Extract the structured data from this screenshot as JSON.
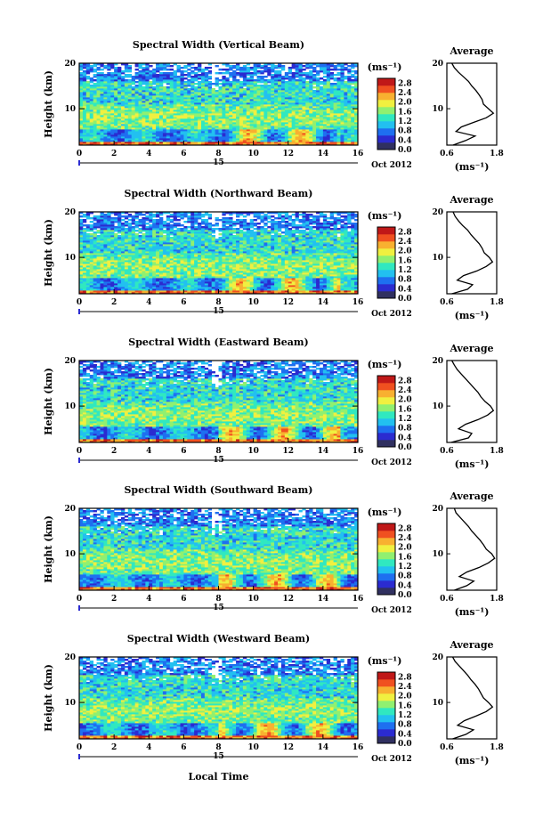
{
  "figure": {
    "xlabel": "Local Time",
    "ylabel": "Height (km)",
    "date_label": "Oct 2012",
    "day_label": "15",
    "colorbar_unit": "(ms⁻¹)",
    "colorbar_ticks": [
      "0.0",
      "0.4",
      "0.8",
      "1.2",
      "1.6",
      "2.0",
      "2.4",
      "2.8"
    ],
    "colormap": [
      "#303060",
      "#2b2bd0",
      "#1e6ff0",
      "#22c0f0",
      "#30e8c0",
      "#90f070",
      "#f0f040",
      "#f8b030",
      "#f05020",
      "#c01818"
    ]
  },
  "chart_data": [
    {
      "type": "heatmap",
      "title": "Spectral Width (Vertical Beam)",
      "x_range": [
        0,
        16
      ],
      "y_range": [
        2,
        20
      ],
      "x_ticks": [
        "0",
        "2",
        "4",
        "6",
        "8",
        "10",
        "12",
        "14",
        "16"
      ],
      "y_ticks": [
        "20",
        "10"
      ],
      "value_range": [
        0.0,
        3.0
      ],
      "profile": {
        "title": "Average",
        "xlabel": "(ms⁻¹)",
        "x_ticks": [
          "0.6",
          "1.8"
        ],
        "y_ticks": [
          "20",
          "10"
        ],
        "x_range": [
          0.6,
          1.8
        ],
        "height_km": [
          2,
          3,
          4,
          5,
          6,
          7,
          8,
          9,
          10,
          11,
          12,
          13,
          14,
          15,
          16,
          17,
          18,
          19,
          20
        ],
        "width_ms": [
          0.75,
          1.05,
          1.28,
          0.82,
          0.95,
          1.25,
          1.55,
          1.72,
          1.6,
          1.48,
          1.45,
          1.38,
          1.3,
          1.2,
          1.12,
          1.0,
          0.88,
          0.78,
          0.72
        ]
      }
    },
    {
      "type": "heatmap",
      "title": "Spectral Width (Northward Beam)",
      "x_range": [
        0,
        16
      ],
      "y_range": [
        2,
        20
      ],
      "x_ticks": [
        "0",
        "2",
        "4",
        "6",
        "8",
        "10",
        "12",
        "14",
        "16"
      ],
      "y_ticks": [
        "20",
        "10"
      ],
      "value_range": [
        0.0,
        3.0
      ],
      "profile": {
        "title": "Average",
        "xlabel": "(ms⁻¹)",
        "x_ticks": [
          "0.6",
          "1.8"
        ],
        "y_ticks": [
          "20",
          "10"
        ],
        "x_range": [
          0.6,
          1.8
        ],
        "height_km": [
          2,
          3,
          4,
          5,
          6,
          7,
          8,
          9,
          10,
          11,
          12,
          13,
          14,
          15,
          16,
          17,
          18,
          19,
          20
        ],
        "width_ms": [
          0.72,
          1.1,
          1.22,
          0.85,
          1.0,
          1.32,
          1.55,
          1.7,
          1.62,
          1.5,
          1.45,
          1.38,
          1.28,
          1.18,
          1.1,
          0.98,
          0.88,
          0.8,
          0.75
        ]
      }
    },
    {
      "type": "heatmap",
      "title": "Spectral Width (Eastward Beam)",
      "x_range": [
        0,
        16
      ],
      "y_range": [
        2,
        20
      ],
      "x_ticks": [
        "0",
        "2",
        "4",
        "6",
        "8",
        "10",
        "12",
        "14",
        "16"
      ],
      "y_ticks": [
        "20",
        "10"
      ],
      "value_range": [
        0.0,
        3.0
      ],
      "profile": {
        "title": "Average",
        "xlabel": "(ms⁻¹)",
        "x_ticks": [
          "0.6",
          "1.8"
        ],
        "y_ticks": [
          "20",
          "10"
        ],
        "x_range": [
          0.6,
          1.8
        ],
        "height_km": [
          2,
          3,
          4,
          5,
          6,
          7,
          8,
          9,
          10,
          11,
          12,
          13,
          14,
          15,
          16,
          17,
          18,
          19,
          20
        ],
        "width_ms": [
          0.7,
          1.12,
          1.2,
          0.88,
          1.05,
          1.35,
          1.58,
          1.72,
          1.65,
          1.52,
          1.42,
          1.35,
          1.25,
          1.15,
          1.05,
          0.95,
          0.85,
          0.78,
          0.72
        ]
      }
    },
    {
      "type": "heatmap",
      "title": "Spectral Width (Southward Beam)",
      "x_range": [
        0,
        16
      ],
      "y_range": [
        2,
        20
      ],
      "x_ticks": [
        "0",
        "2",
        "4",
        "6",
        "8",
        "10",
        "12",
        "14",
        "16"
      ],
      "y_ticks": [
        "20",
        "10"
      ],
      "value_range": [
        0.0,
        3.0
      ],
      "profile": {
        "title": "Average",
        "xlabel": "(ms⁻¹)",
        "x_ticks": [
          "0.6",
          "1.8"
        ],
        "y_ticks": [
          "20",
          "10"
        ],
        "x_range": [
          0.6,
          1.8
        ],
        "height_km": [
          2,
          3,
          4,
          5,
          6,
          7,
          8,
          9,
          10,
          11,
          12,
          13,
          14,
          15,
          16,
          17,
          18,
          19,
          20
        ],
        "width_ms": [
          0.78,
          1.08,
          1.25,
          0.9,
          1.08,
          1.38,
          1.6,
          1.75,
          1.68,
          1.55,
          1.48,
          1.4,
          1.3,
          1.2,
          1.12,
          1.02,
          0.92,
          0.82,
          0.78
        ]
      }
    },
    {
      "type": "heatmap",
      "title": "Spectral Width (Westward Beam)",
      "x_range": [
        0,
        16
      ],
      "y_range": [
        2,
        20
      ],
      "x_ticks": [
        "0",
        "2",
        "4",
        "6",
        "8",
        "10",
        "12",
        "14",
        "16"
      ],
      "y_ticks": [
        "20",
        "10"
      ],
      "value_range": [
        0.0,
        3.0
      ],
      "profile": {
        "title": "Average",
        "xlabel": "(ms⁻¹)",
        "x_ticks": [
          "0.6",
          "1.8"
        ],
        "y_ticks": [
          "20",
          "10"
        ],
        "x_range": [
          0.6,
          1.8
        ],
        "height_km": [
          2,
          3,
          4,
          5,
          6,
          7,
          8,
          9,
          10,
          11,
          12,
          13,
          14,
          15,
          16,
          17,
          18,
          19,
          20
        ],
        "width_ms": [
          0.74,
          1.06,
          1.24,
          0.86,
          1.02,
          1.3,
          1.55,
          1.7,
          1.6,
          1.48,
          1.42,
          1.36,
          1.28,
          1.18,
          1.1,
          1.0,
          0.9,
          0.8,
          0.74
        ]
      }
    }
  ]
}
